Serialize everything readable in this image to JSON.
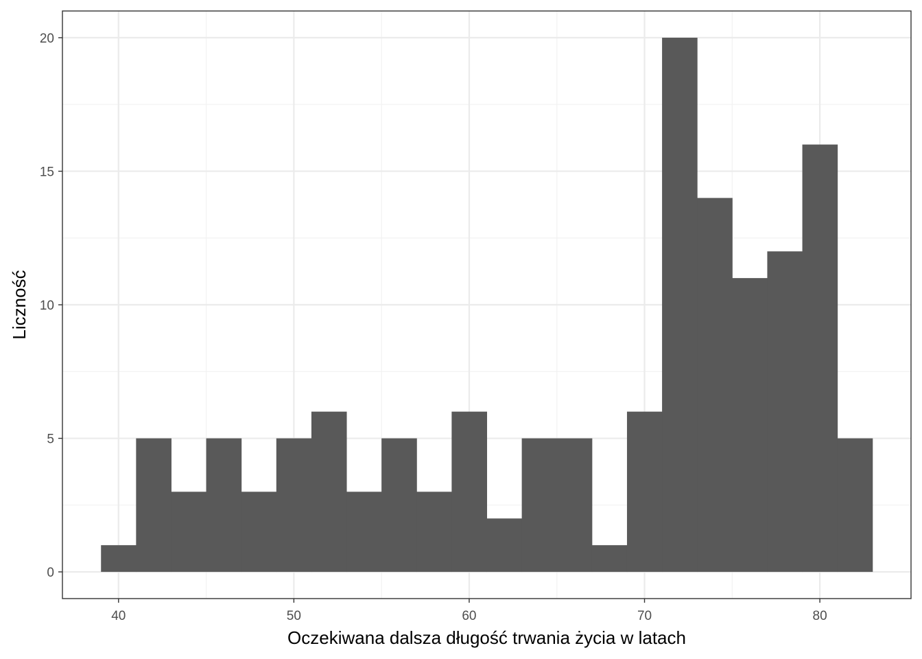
{
  "chart_data": {
    "type": "bar",
    "subtype": "histogram",
    "title": "",
    "xlabel": "Oczekiwana dalsza długość trwania życia w latach",
    "ylabel": "Liczność",
    "bin_width": 2,
    "bins": [
      {
        "x0": 39,
        "x1": 41,
        "count": 1
      },
      {
        "x0": 41,
        "x1": 43,
        "count": 5
      },
      {
        "x0": 43,
        "x1": 45,
        "count": 3
      },
      {
        "x0": 45,
        "x1": 47,
        "count": 5
      },
      {
        "x0": 47,
        "x1": 49,
        "count": 3
      },
      {
        "x0": 49,
        "x1": 51,
        "count": 5
      },
      {
        "x0": 51,
        "x1": 53,
        "count": 6
      },
      {
        "x0": 53,
        "x1": 55,
        "count": 3
      },
      {
        "x0": 55,
        "x1": 57,
        "count": 5
      },
      {
        "x0": 57,
        "x1": 59,
        "count": 3
      },
      {
        "x0": 59,
        "x1": 61,
        "count": 6
      },
      {
        "x0": 61,
        "x1": 63,
        "count": 2
      },
      {
        "x0": 63,
        "x1": 65,
        "count": 5
      },
      {
        "x0": 65,
        "x1": 67,
        "count": 5
      },
      {
        "x0": 67,
        "x1": 69,
        "count": 1
      },
      {
        "x0": 69,
        "x1": 71,
        "count": 6
      },
      {
        "x0": 71,
        "x1": 73,
        "count": 20
      },
      {
        "x0": 73,
        "x1": 75,
        "count": 14
      },
      {
        "x0": 75,
        "x1": 77,
        "count": 11
      },
      {
        "x0": 77,
        "x1": 79,
        "count": 12
      },
      {
        "x0": 79,
        "x1": 81,
        "count": 16
      },
      {
        "x0": 81,
        "x1": 83,
        "count": 5
      }
    ],
    "xlim": [
      36.8,
      85.2
    ],
    "ylim": [
      -1,
      21
    ],
    "x_ticks": [
      40,
      50,
      60,
      70,
      80
    ],
    "x_tick_labels": [
      "40",
      "50",
      "60",
      "70",
      "80"
    ],
    "y_ticks": [
      0,
      5,
      10,
      15,
      20
    ],
    "y_tick_labels": [
      "0",
      "5",
      "10",
      "15",
      "20"
    ],
    "grid": true,
    "legend": "none",
    "colors": {
      "bar": "#595959",
      "panel_border": "#333333",
      "grid_major": "#ebebeb",
      "grid_minor": "#f2f2f2",
      "tick_label": "#4d4d4d",
      "axis_title": "#000000"
    }
  }
}
